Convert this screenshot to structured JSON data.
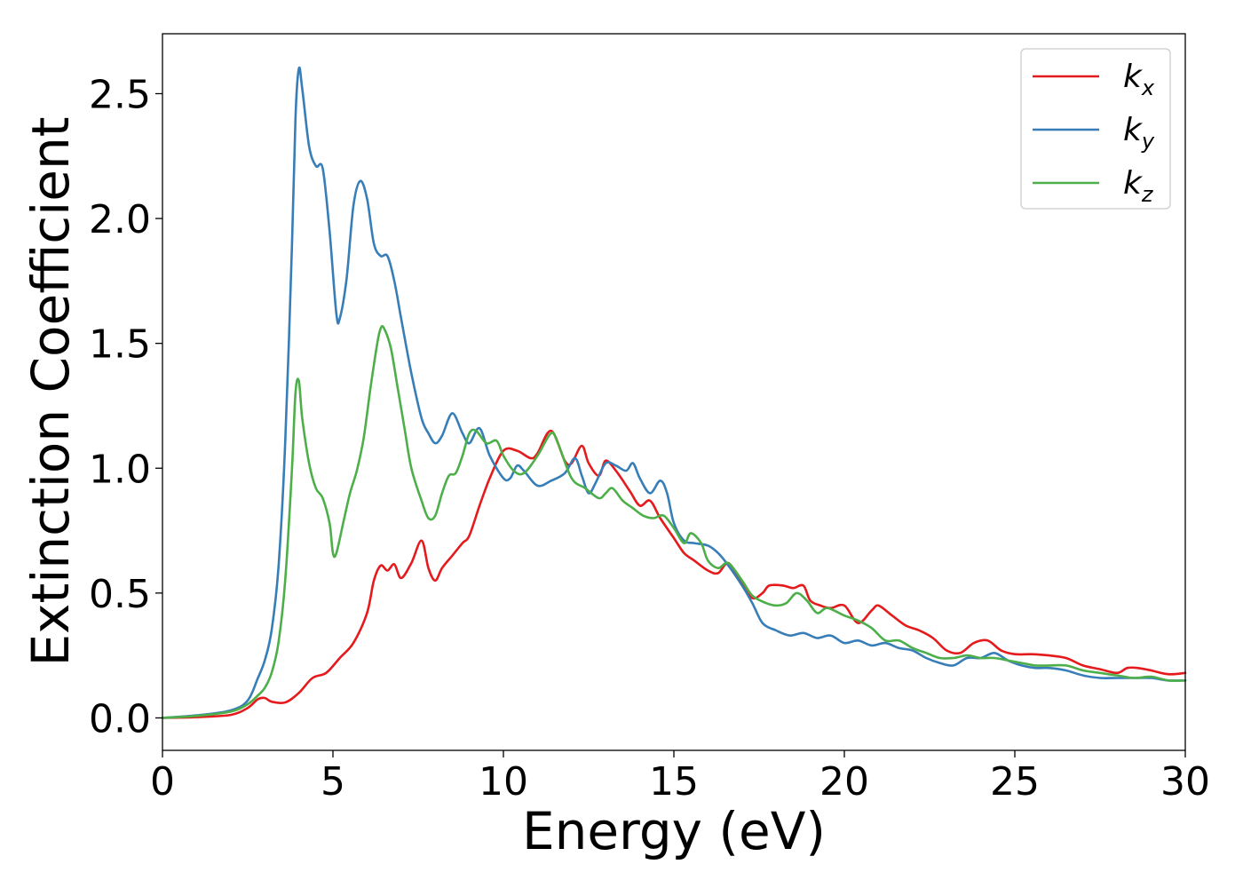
{
  "chart_data": {
    "type": "line",
    "xlabel": "Energy (eV)",
    "ylabel": "Extinction Coefficient",
    "xlim": [
      0,
      30
    ],
    "ylim": [
      -0.13,
      2.74
    ],
    "xticks": [
      0,
      5,
      10,
      15,
      20,
      25,
      30
    ],
    "xtick_labels": [
      "0",
      "5",
      "10",
      "15",
      "20",
      "25",
      "30"
    ],
    "yticks": [
      0.0,
      0.5,
      1.0,
      1.5,
      2.0,
      2.5
    ],
    "ytick_labels": [
      "0.0",
      "0.5",
      "1.0",
      "1.5",
      "2.0",
      "2.5"
    ],
    "grid": false,
    "legend_position": "top-right",
    "series": [
      {
        "name": "k",
        "subscript": "x",
        "color": "#e41a1c",
        "x": [
          0,
          1,
          2,
          2.5,
          2.8,
          3.0,
          3.2,
          3.6,
          4.0,
          4.4,
          4.8,
          5.2,
          5.6,
          6.0,
          6.2,
          6.4,
          6.6,
          6.8,
          7.0,
          7.3,
          7.6,
          7.8,
          8.0,
          8.2,
          8.5,
          8.8,
          9.0,
          9.3,
          9.6,
          10.0,
          10.4,
          10.8,
          11.0,
          11.4,
          11.8,
          12.0,
          12.3,
          12.5,
          12.8,
          13.0,
          13.3,
          13.7,
          14.0,
          14.3,
          14.6,
          15.0,
          15.3,
          15.6,
          16.0,
          16.3,
          16.6,
          17.0,
          17.3,
          17.6,
          17.8,
          18.2,
          18.5,
          18.8,
          19.0,
          19.3,
          19.6,
          20.0,
          20.4,
          20.8,
          21.0,
          21.4,
          21.8,
          22.2,
          22.6,
          23.0,
          23.4,
          23.8,
          24.2,
          24.6,
          25.0,
          25.5,
          26.0,
          26.5,
          27.0,
          27.5,
          28.0,
          28.3,
          28.6,
          29.0,
          29.5,
          30.0
        ],
        "y": [
          0.0,
          0.003,
          0.012,
          0.04,
          0.075,
          0.08,
          0.065,
          0.062,
          0.1,
          0.16,
          0.18,
          0.24,
          0.3,
          0.42,
          0.55,
          0.61,
          0.59,
          0.615,
          0.56,
          0.62,
          0.71,
          0.6,
          0.55,
          0.6,
          0.65,
          0.7,
          0.73,
          0.85,
          0.96,
          1.07,
          1.07,
          1.04,
          1.06,
          1.15,
          1.03,
          1.02,
          1.09,
          1.02,
          0.97,
          1.03,
          0.99,
          0.91,
          0.85,
          0.87,
          0.8,
          0.72,
          0.66,
          0.63,
          0.59,
          0.58,
          0.62,
          0.54,
          0.48,
          0.5,
          0.53,
          0.53,
          0.52,
          0.53,
          0.47,
          0.45,
          0.44,
          0.45,
          0.38,
          0.43,
          0.45,
          0.41,
          0.37,
          0.35,
          0.32,
          0.27,
          0.26,
          0.3,
          0.31,
          0.27,
          0.255,
          0.255,
          0.25,
          0.24,
          0.21,
          0.195,
          0.18,
          0.2,
          0.2,
          0.19,
          0.175,
          0.18
        ]
      },
      {
        "name": "k",
        "subscript": "y",
        "color": "#377eb8",
        "x": [
          0,
          1,
          2,
          2.5,
          2.8,
          3.0,
          3.2,
          3.4,
          3.6,
          3.8,
          3.9,
          4.0,
          4.1,
          4.3,
          4.5,
          4.7,
          4.9,
          5.1,
          5.2,
          5.4,
          5.6,
          5.8,
          6.0,
          6.2,
          6.4,
          6.6,
          6.8,
          7.0,
          7.3,
          7.6,
          7.8,
          8.0,
          8.2,
          8.5,
          8.8,
          9.0,
          9.3,
          9.6,
          10.0,
          10.2,
          10.4,
          10.6,
          11.0,
          11.4,
          11.8,
          12.1,
          12.3,
          12.5,
          12.7,
          13.0,
          13.3,
          13.6,
          13.8,
          14.0,
          14.3,
          14.6,
          14.8,
          15.0,
          15.3,
          15.6,
          16.0,
          16.3,
          16.6,
          17.0,
          17.3,
          17.6,
          18.0,
          18.4,
          18.8,
          19.2,
          19.6,
          20.0,
          20.4,
          20.8,
          21.2,
          21.6,
          22.0,
          22.4,
          22.8,
          23.2,
          23.6,
          24.0,
          24.4,
          24.8,
          25.2,
          25.6,
          26.0,
          26.5,
          27.0,
          27.5,
          28.0,
          28.5,
          29.0,
          29.5,
          30.0
        ],
        "y": [
          0.0,
          0.01,
          0.03,
          0.07,
          0.16,
          0.23,
          0.35,
          0.6,
          1.1,
          1.9,
          2.4,
          2.6,
          2.52,
          2.29,
          2.21,
          2.2,
          1.95,
          1.62,
          1.6,
          1.76,
          2.05,
          2.15,
          2.08,
          1.9,
          1.85,
          1.85,
          1.75,
          1.6,
          1.38,
          1.2,
          1.14,
          1.1,
          1.13,
          1.22,
          1.14,
          1.1,
          1.16,
          1.05,
          0.96,
          0.96,
          1.01,
          0.99,
          0.93,
          0.95,
          0.98,
          1.04,
          0.97,
          0.9,
          0.94,
          1.02,
          1.01,
          0.99,
          1.02,
          0.96,
          0.9,
          0.95,
          0.9,
          0.78,
          0.71,
          0.7,
          0.69,
          0.66,
          0.61,
          0.53,
          0.46,
          0.38,
          0.35,
          0.33,
          0.34,
          0.32,
          0.33,
          0.3,
          0.31,
          0.29,
          0.3,
          0.28,
          0.27,
          0.24,
          0.22,
          0.21,
          0.24,
          0.24,
          0.26,
          0.23,
          0.21,
          0.2,
          0.2,
          0.19,
          0.17,
          0.16,
          0.16,
          0.16,
          0.16,
          0.15,
          0.15
        ]
      },
      {
        "name": "k",
        "subscript": "z",
        "color": "#4daf4a",
        "x": [
          0,
          1,
          2,
          2.5,
          2.8,
          3.0,
          3.2,
          3.4,
          3.6,
          3.8,
          3.9,
          4.0,
          4.1,
          4.3,
          4.5,
          4.7,
          4.9,
          5.0,
          5.1,
          5.3,
          5.5,
          5.7,
          5.9,
          6.1,
          6.3,
          6.4,
          6.5,
          6.7,
          6.9,
          7.1,
          7.3,
          7.6,
          7.8,
          8.0,
          8.2,
          8.4,
          8.6,
          8.8,
          9.0,
          9.2,
          9.5,
          9.8,
          10.0,
          10.3,
          10.6,
          11.0,
          11.4,
          11.6,
          12.0,
          12.4,
          12.8,
          13.0,
          13.2,
          13.5,
          13.8,
          14.1,
          14.4,
          14.7,
          15.0,
          15.3,
          15.5,
          15.8,
          16.0,
          16.3,
          16.6,
          17.0,
          17.3,
          17.7,
          18.0,
          18.3,
          18.6,
          18.9,
          19.2,
          19.5,
          20.0,
          20.4,
          20.8,
          21.2,
          21.6,
          22.0,
          22.4,
          22.8,
          23.2,
          23.6,
          24.0,
          24.4,
          24.8,
          25.2,
          25.6,
          26.0,
          26.5,
          27.0,
          27.5,
          28.0,
          28.5,
          29.0,
          29.5,
          30.0
        ],
        "y": [
          0.0,
          0.008,
          0.025,
          0.055,
          0.09,
          0.12,
          0.18,
          0.3,
          0.55,
          1.0,
          1.3,
          1.35,
          1.2,
          1.02,
          0.92,
          0.88,
          0.78,
          0.66,
          0.66,
          0.78,
          0.9,
          0.99,
          1.12,
          1.32,
          1.5,
          1.56,
          1.56,
          1.48,
          1.32,
          1.16,
          1.0,
          0.87,
          0.8,
          0.81,
          0.9,
          0.97,
          0.98,
          1.05,
          1.14,
          1.15,
          1.1,
          1.11,
          1.05,
          0.99,
          0.98,
          1.05,
          1.14,
          1.1,
          0.96,
          0.92,
          0.88,
          0.9,
          0.92,
          0.87,
          0.84,
          0.81,
          0.8,
          0.81,
          0.76,
          0.7,
          0.74,
          0.7,
          0.63,
          0.6,
          0.62,
          0.55,
          0.49,
          0.46,
          0.45,
          0.46,
          0.5,
          0.47,
          0.42,
          0.44,
          0.41,
          0.39,
          0.36,
          0.31,
          0.31,
          0.28,
          0.26,
          0.24,
          0.24,
          0.25,
          0.24,
          0.24,
          0.23,
          0.22,
          0.21,
          0.21,
          0.21,
          0.19,
          0.18,
          0.17,
          0.16,
          0.165,
          0.15,
          0.15
        ]
      }
    ]
  }
}
